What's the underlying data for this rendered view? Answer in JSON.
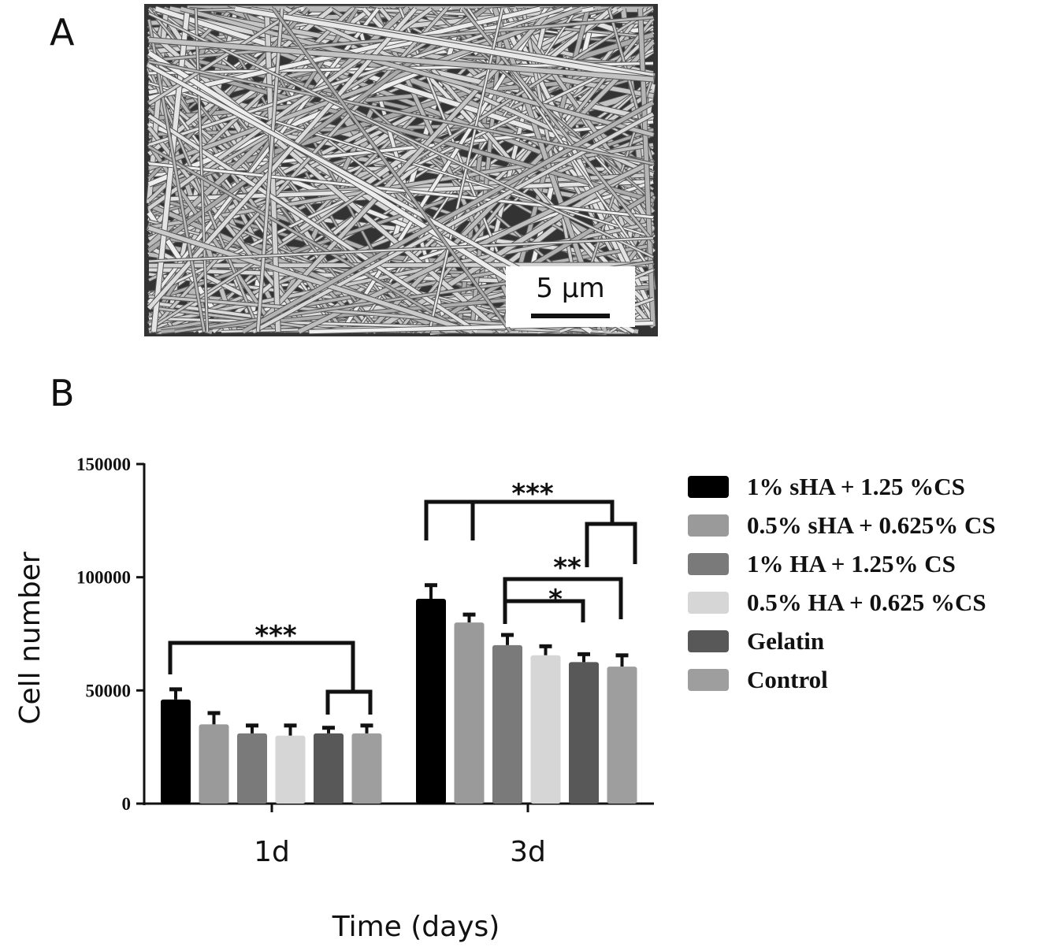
{
  "panels": {
    "a_label": "A",
    "b_label": "B"
  },
  "sem_image": {
    "scale_bar_label": "5 µm"
  },
  "chart_data": {
    "type": "bar",
    "title": "",
    "xlabel": "Time (days)",
    "ylabel": "Cell number",
    "ylim": [
      0,
      150000
    ],
    "yticks": [
      "0",
      "50000",
      "100000",
      "150000"
    ],
    "categories": [
      "1d",
      "3d"
    ],
    "legend_position": "right",
    "grid": false,
    "series": [
      {
        "name": "1% sHA + 1.25 %CS",
        "color": "#000000",
        "values": [
          46000,
          90500
        ],
        "errors": [
          4500,
          6000
        ]
      },
      {
        "name": "0.5% sHA + 0.625% CS",
        "color": "#9a9a9a",
        "values": [
          35000,
          80000
        ],
        "errors": [
          5000,
          3500
        ]
      },
      {
        "name": "1% HA + 1.25% CS",
        "color": "#7a7a7a",
        "values": [
          31000,
          70000
        ],
        "errors": [
          3500,
          4500
        ]
      },
      {
        "name": "0.5% HA + 0.625 %CS",
        "color": "#d6d6d6",
        "values": [
          30000,
          65500
        ],
        "errors": [
          4500,
          4000
        ]
      },
      {
        "name": "Gelatin",
        "color": "#585858",
        "values": [
          31000,
          62500
        ],
        "errors": [
          2500,
          3500
        ]
      },
      {
        "name": "Control",
        "color": "#9e9e9e",
        "values": [
          31000,
          60500
        ],
        "errors": [
          3500,
          5000
        ]
      }
    ],
    "significance": [
      {
        "label": "***",
        "day": "1d"
      },
      {
        "label": "***",
        "day": "3d"
      },
      {
        "label": "**",
        "day": "3d"
      },
      {
        "label": "*",
        "day": "3d"
      }
    ]
  }
}
